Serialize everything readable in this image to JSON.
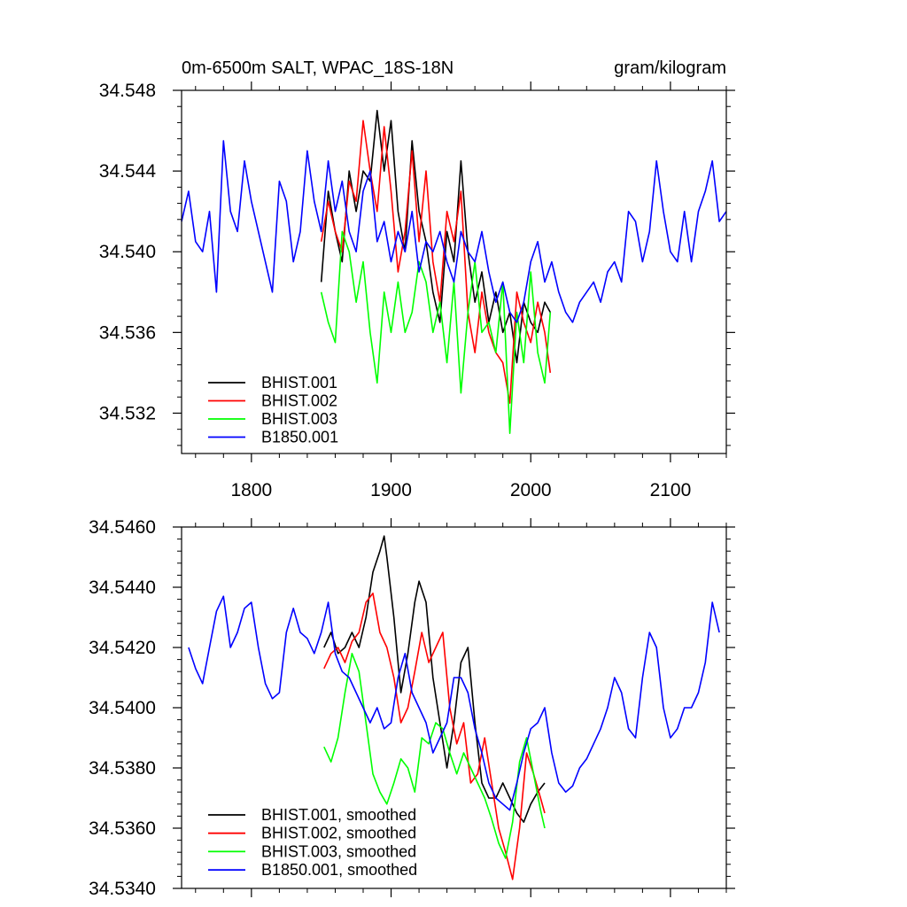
{
  "chart_data": [
    {
      "type": "line",
      "title_left": "0m-6500m SALT, WPAC_18S-18N",
      "title_right": "gram/kilogram",
      "xlim": [
        1750,
        2140
      ],
      "ylim": [
        34.53,
        34.548
      ],
      "xticks": [
        1800,
        1900,
        2000,
        2100
      ],
      "xtick_labels": [
        "1800",
        "1900",
        "2000",
        "2100"
      ],
      "yticks": [
        34.532,
        34.536,
        34.54,
        34.544,
        34.548
      ],
      "ytick_labels": [
        "34.532",
        "34.536",
        "34.540",
        "34.544",
        "34.548"
      ],
      "legend_position": "bottom-left",
      "series": [
        {
          "name": "BHIST.001",
          "color": "#000000",
          "x": [
            1850,
            1855,
            1860,
            1865,
            1870,
            1875,
            1880,
            1885,
            1890,
            1895,
            1900,
            1905,
            1910,
            1915,
            1920,
            1925,
            1930,
            1935,
            1940,
            1945,
            1950,
            1955,
            1960,
            1965,
            1970,
            1975,
            1980,
            1985,
            1990,
            1995,
            2000,
            2005,
            2010,
            2014
          ],
          "y": [
            34.5385,
            34.543,
            34.541,
            34.5395,
            34.544,
            34.542,
            34.544,
            34.5435,
            34.547,
            34.544,
            34.5465,
            34.542,
            34.54,
            34.5455,
            34.542,
            34.5405,
            34.538,
            34.5365,
            34.541,
            34.5395,
            34.5445,
            34.54,
            34.5375,
            34.539,
            34.5365,
            34.538,
            34.536,
            34.537,
            34.5345,
            34.5375,
            34.5365,
            34.536,
            34.5375,
            34.537
          ]
        },
        {
          "name": "BHIST.002",
          "color": "#ff0000",
          "x": [
            1850,
            1855,
            1860,
            1865,
            1870,
            1875,
            1880,
            1885,
            1890,
            1895,
            1900,
            1905,
            1910,
            1915,
            1920,
            1925,
            1930,
            1935,
            1940,
            1945,
            1950,
            1955,
            1960,
            1965,
            1970,
            1975,
            1980,
            1985,
            1990,
            1995,
            2000,
            2005,
            2010,
            2014
          ],
          "y": [
            34.5405,
            34.5425,
            34.541,
            34.54,
            34.5435,
            34.5425,
            34.5465,
            34.544,
            34.542,
            34.5462,
            34.543,
            34.539,
            34.541,
            34.545,
            34.5405,
            34.544,
            34.5395,
            34.5375,
            34.542,
            34.5405,
            34.543,
            34.537,
            34.535,
            34.538,
            34.536,
            34.535,
            34.5345,
            34.5325,
            34.538,
            34.5365,
            34.5355,
            34.5375,
            34.536,
            34.534
          ]
        },
        {
          "name": "BHIST.003",
          "color": "#00ff00",
          "x": [
            1850,
            1855,
            1860,
            1865,
            1870,
            1875,
            1880,
            1885,
            1890,
            1895,
            1900,
            1905,
            1910,
            1915,
            1920,
            1925,
            1930,
            1935,
            1940,
            1945,
            1950,
            1955,
            1960,
            1965,
            1970,
            1975,
            1980,
            1985,
            1990,
            1995,
            2000,
            2005,
            2010,
            2014
          ],
          "y": [
            34.538,
            34.5365,
            34.5355,
            34.541,
            34.54,
            34.5375,
            34.5395,
            34.536,
            34.5335,
            34.538,
            34.536,
            34.5385,
            34.536,
            34.537,
            34.5395,
            34.5385,
            34.536,
            34.5375,
            34.5345,
            34.5385,
            34.533,
            34.537,
            34.5395,
            34.536,
            34.5365,
            34.535,
            34.5385,
            34.531,
            34.537,
            34.5345,
            34.539,
            34.535,
            34.5335,
            34.537
          ]
        },
        {
          "name": "B1850.001",
          "color": "#0000ff",
          "x": [
            1750,
            1755,
            1760,
            1765,
            1770,
            1775,
            1780,
            1785,
            1790,
            1795,
            1800,
            1805,
            1810,
            1815,
            1820,
            1825,
            1830,
            1835,
            1840,
            1845,
            1850,
            1855,
            1860,
            1865,
            1870,
            1875,
            1880,
            1885,
            1890,
            1895,
            1900,
            1905,
            1910,
            1915,
            1920,
            1925,
            1930,
            1935,
            1940,
            1945,
            1950,
            1955,
            1960,
            1965,
            1970,
            1975,
            1980,
            1985,
            1990,
            1995,
            2000,
            2005,
            2010,
            2015,
            2020,
            2025,
            2030,
            2035,
            2040,
            2045,
            2050,
            2055,
            2060,
            2065,
            2070,
            2075,
            2080,
            2085,
            2090,
            2095,
            2100,
            2105,
            2110,
            2115,
            2120,
            2125,
            2130,
            2135,
            2140
          ],
          "y": [
            34.5415,
            34.543,
            34.5405,
            34.54,
            34.542,
            34.538,
            34.5455,
            34.542,
            34.541,
            34.5445,
            34.5425,
            34.541,
            34.5395,
            34.538,
            34.5435,
            34.5425,
            34.5395,
            34.541,
            34.545,
            34.5425,
            34.541,
            34.5445,
            34.542,
            34.5435,
            34.541,
            34.54,
            34.543,
            34.544,
            34.5405,
            34.5415,
            34.5395,
            34.541,
            34.54,
            34.542,
            34.539,
            34.5405,
            34.54,
            34.541,
            34.5395,
            34.5385,
            34.541,
            34.54,
            34.5395,
            34.541,
            34.539,
            34.5375,
            34.5385,
            34.537,
            34.5365,
            34.5375,
            34.5395,
            34.5405,
            34.5385,
            34.5395,
            34.538,
            34.537,
            34.5365,
            34.5375,
            34.538,
            34.5385,
            34.5375,
            34.539,
            34.5395,
            34.5385,
            34.542,
            34.5415,
            34.5395,
            34.541,
            34.5445,
            34.542,
            34.54,
            34.5395,
            34.542,
            34.5395,
            34.542,
            34.543,
            34.5445,
            34.5415,
            34.542
          ]
        }
      ]
    },
    {
      "type": "line",
      "xlim": [
        1750,
        2140
      ],
      "ylim": [
        34.534,
        34.546
      ],
      "xticks": [
        1800,
        1900,
        2000,
        2100
      ],
      "xtick_labels": [],
      "yticks": [
        34.534,
        34.536,
        34.538,
        34.54,
        34.542,
        34.544,
        34.546
      ],
      "ytick_labels": [
        "34.5340",
        "34.5360",
        "34.5380",
        "34.5400",
        "34.5420",
        "34.5440",
        "34.5460"
      ],
      "legend_position": "bottom-left",
      "series": [
        {
          "name": "BHIST.001, smoothed",
          "color": "#000000",
          "x": [
            1852,
            1857,
            1862,
            1867,
            1872,
            1877,
            1882,
            1887,
            1892,
            1895,
            1897,
            1902,
            1907,
            1912,
            1917,
            1920,
            1925,
            1930,
            1935,
            1940,
            1945,
            1950,
            1955,
            1960,
            1965,
            1970,
            1975,
            1980,
            1985,
            1990,
            1995,
            2000,
            2005,
            2010
          ],
          "y": [
            34.542,
            34.5425,
            34.5418,
            34.542,
            34.5425,
            34.542,
            34.543,
            34.5445,
            34.5452,
            34.5457,
            34.545,
            34.543,
            34.5405,
            34.5418,
            34.5435,
            34.5442,
            34.5435,
            34.541,
            34.5395,
            34.538,
            34.5395,
            34.5415,
            34.542,
            34.5395,
            34.5375,
            34.537,
            34.537,
            34.5375,
            34.537,
            34.5365,
            34.5362,
            34.5368,
            34.5372,
            34.5375
          ]
        },
        {
          "name": "BHIST.002, smoothed",
          "color": "#ff0000",
          "x": [
            1852,
            1857,
            1862,
            1867,
            1872,
            1877,
            1882,
            1887,
            1892,
            1897,
            1902,
            1907,
            1912,
            1917,
            1922,
            1927,
            1932,
            1937,
            1942,
            1947,
            1952,
            1957,
            1962,
            1967,
            1972,
            1977,
            1982,
            1987,
            1992,
            1997,
            2002,
            2007,
            2010
          ],
          "y": [
            34.5413,
            34.5418,
            34.542,
            34.5415,
            34.5422,
            34.5425,
            34.5435,
            34.5438,
            34.5425,
            34.542,
            34.541,
            34.5395,
            34.54,
            34.5412,
            34.5425,
            34.5415,
            34.542,
            34.5425,
            34.54,
            34.5388,
            34.5395,
            34.5375,
            34.5378,
            34.539,
            34.5375,
            34.536,
            34.5352,
            34.5343,
            34.536,
            34.5385,
            34.5378,
            34.537,
            34.5365
          ]
        },
        {
          "name": "BHIST.003, smoothed",
          "color": "#00ff00",
          "x": [
            1852,
            1857,
            1862,
            1867,
            1872,
            1877,
            1882,
            1887,
            1892,
            1897,
            1902,
            1907,
            1912,
            1917,
            1922,
            1927,
            1932,
            1937,
            1942,
            1947,
            1952,
            1957,
            1962,
            1967,
            1972,
            1977,
            1982,
            1987,
            1992,
            1997,
            2002,
            2007,
            2010
          ],
          "y": [
            34.5387,
            34.5382,
            34.539,
            34.5405,
            34.5418,
            34.5412,
            34.5395,
            34.5378,
            34.5372,
            34.5368,
            34.5375,
            34.5383,
            34.538,
            34.5372,
            34.539,
            34.5388,
            34.5395,
            34.5393,
            34.5385,
            34.5378,
            34.5385,
            34.538,
            34.5375,
            34.537,
            34.5363,
            34.5355,
            34.535,
            34.5362,
            34.5382,
            34.539,
            34.5378,
            34.5366,
            34.536
          ]
        },
        {
          "name": "B1850.001, smoothed",
          "color": "#0000ff",
          "x": [
            1755,
            1760,
            1765,
            1770,
            1775,
            1780,
            1785,
            1790,
            1795,
            1800,
            1805,
            1810,
            1815,
            1820,
            1825,
            1830,
            1835,
            1840,
            1845,
            1850,
            1855,
            1860,
            1865,
            1870,
            1875,
            1880,
            1885,
            1890,
            1895,
            1900,
            1905,
            1910,
            1915,
            1920,
            1925,
            1930,
            1935,
            1940,
            1945,
            1950,
            1955,
            1960,
            1965,
            1970,
            1975,
            1980,
            1985,
            1990,
            1995,
            2000,
            2005,
            2010,
            2015,
            2020,
            2025,
            2030,
            2035,
            2040,
            2045,
            2050,
            2055,
            2060,
            2065,
            2070,
            2075,
            2080,
            2085,
            2090,
            2095,
            2100,
            2105,
            2110,
            2115,
            2120,
            2125,
            2130,
            2135
          ],
          "y": [
            34.542,
            34.5413,
            34.5408,
            34.542,
            34.5432,
            34.5437,
            34.542,
            34.5425,
            34.5433,
            34.5435,
            34.542,
            34.5408,
            34.5403,
            34.5405,
            34.5425,
            34.5433,
            34.5425,
            34.5423,
            34.5418,
            34.5425,
            34.5435,
            34.5418,
            34.5412,
            34.541,
            34.5405,
            34.54,
            34.5395,
            34.54,
            34.5393,
            34.5395,
            34.541,
            34.5418,
            34.5405,
            34.54,
            34.5395,
            34.5385,
            34.539,
            34.5395,
            34.541,
            34.541,
            34.5405,
            34.5393,
            34.5385,
            34.5375,
            34.537,
            34.5368,
            34.5366,
            34.5375,
            34.5385,
            34.5393,
            34.5395,
            34.54,
            34.5385,
            34.5375,
            34.5372,
            34.5374,
            34.538,
            34.5383,
            34.5388,
            34.5393,
            34.54,
            34.541,
            34.5405,
            34.5393,
            34.539,
            34.541,
            34.5425,
            34.542,
            34.54,
            34.539,
            34.5393,
            34.54,
            34.54,
            34.5405,
            34.5415,
            34.5435,
            34.5425
          ]
        }
      ]
    }
  ]
}
